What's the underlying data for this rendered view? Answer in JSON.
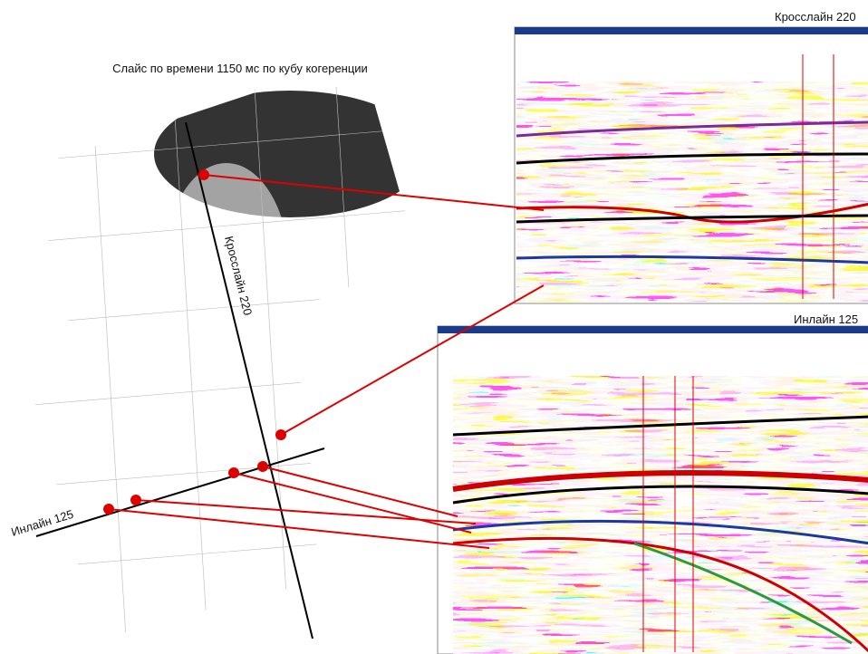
{
  "title": "Слайс по времени 1150 мс по кубу когеренции",
  "map": {
    "crossline_label": "Кросслайн 220",
    "inline_label": "Инлайн 125"
  },
  "panels": [
    {
      "label": "Кросслайн 220"
    },
    {
      "label": "Инлайн 125"
    }
  ]
}
